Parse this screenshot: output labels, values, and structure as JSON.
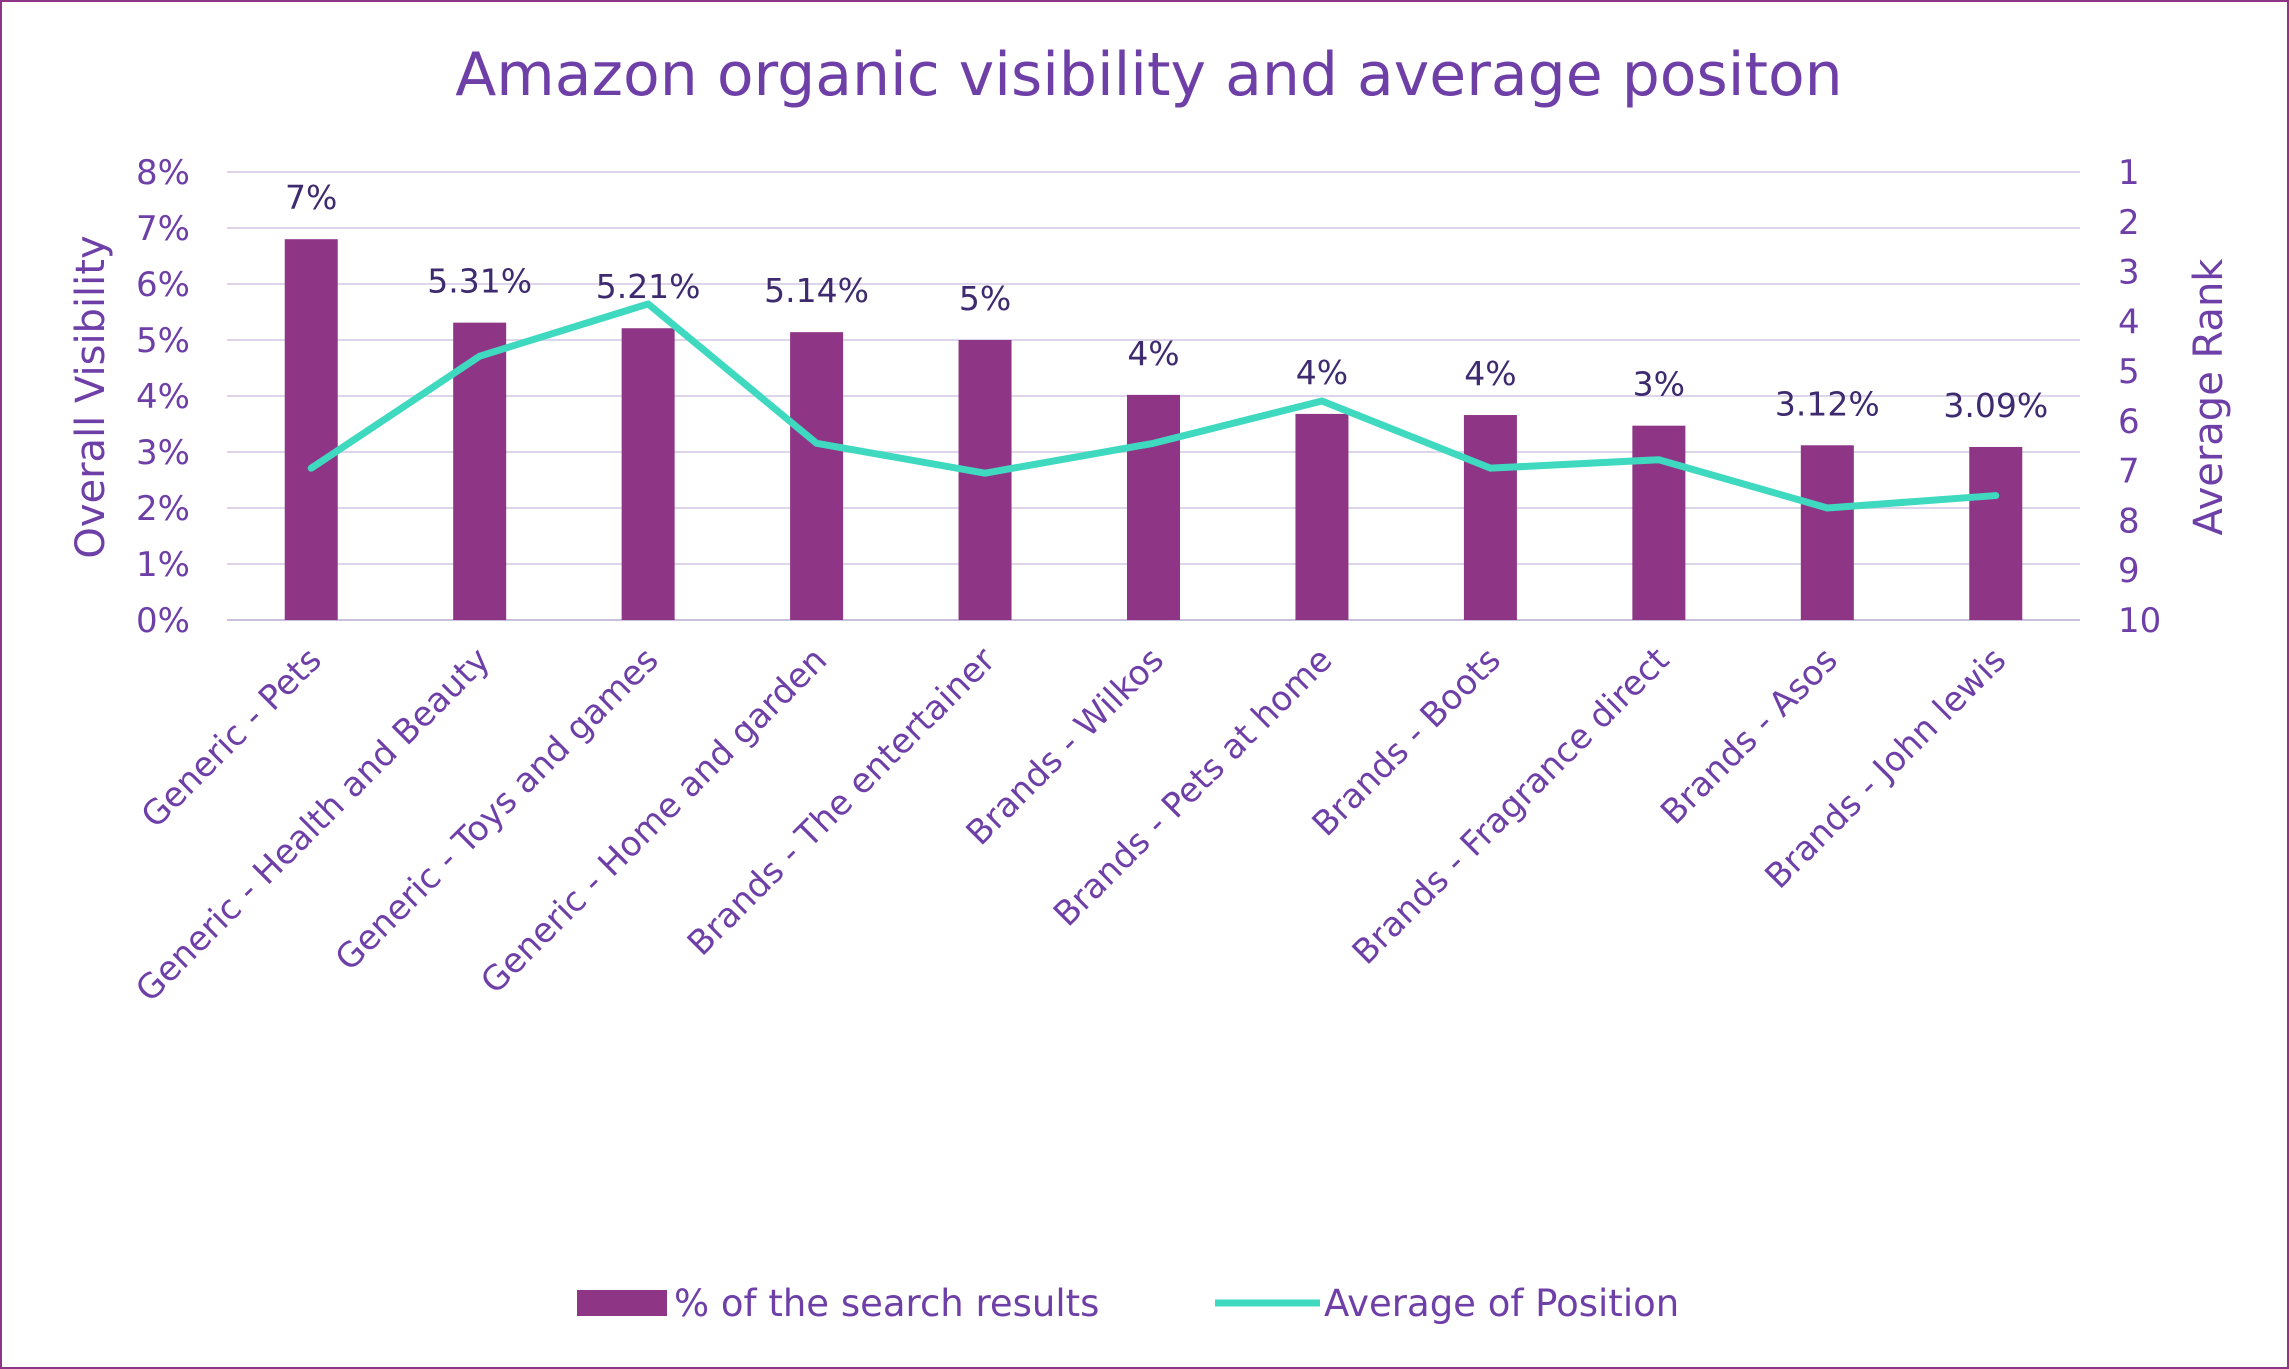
{
  "chart_data": {
    "type": "bar",
    "title": "Amazon organic visibility and average positon",
    "ylabel": "Overall Visibility",
    "y2label": "Average Rank",
    "ylim": [
      0,
      8
    ],
    "y2lim": [
      1,
      10
    ],
    "y2_reversed": true,
    "yticks": [
      "0%",
      "1%",
      "2%",
      "3%",
      "4%",
      "5%",
      "6%",
      "7%",
      "8%"
    ],
    "y2ticks": [
      "1",
      "2",
      "3",
      "4",
      "5",
      "6",
      "7",
      "8",
      "9",
      "10"
    ],
    "grid": true,
    "legend_position": "bottom",
    "categories": [
      "Generic - Pets",
      "Generic - Health and Beauty",
      "Generic - Toys and games",
      "Generic - Home and garden",
      "Brands - The entertainer",
      "Brands - Wilkos",
      "Brands - Pets at home",
      "Brands - Boots",
      "Brands - Fragrance direct",
      "Brands - Asos",
      "Brands - John lewis"
    ],
    "series": [
      {
        "name": "% of the search results",
        "type": "bar",
        "axis": "left",
        "color": "#8e3585",
        "values": [
          6.8,
          5.31,
          5.21,
          5.14,
          5.0,
          4.02,
          3.68,
          3.66,
          3.47,
          3.12,
          3.09
        ],
        "labels": [
          "7%",
          "5.31%",
          "5.21%",
          "5.14%",
          "5%",
          "4%",
          "4%",
          "4%",
          "3%",
          "3.12%",
          "3.09%"
        ]
      },
      {
        "name": "Average of Position",
        "type": "line",
        "axis": "right",
        "color": "#3fd9c0",
        "values": [
          6.95,
          4.7,
          3.65,
          6.45,
          7.05,
          6.45,
          5.6,
          6.95,
          6.78,
          7.75,
          7.5
        ]
      }
    ]
  }
}
